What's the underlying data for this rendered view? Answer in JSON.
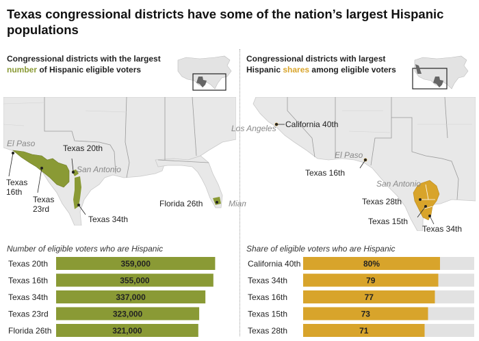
{
  "title": "Texas congressional districts have some of the nation’s largest Hispanic populations",
  "left_panel": {
    "subtitle_line1": "Congressional districts with the largest",
    "subtitle_highlight": "number",
    "subtitle_line2_rest": " of Hispanic eligible voters",
    "map_labels": {
      "el_paso": "El Paso",
      "san_antonio": "San Antonio",
      "miami": "Miami",
      "texas_20th": "Texas 20th",
      "texas_16th_a": "Texas",
      "texas_16th_b": "16th",
      "texas_23rd_a": "Texas",
      "texas_23rd_b": "23rd",
      "texas_34th": "Texas 34th",
      "florida_26th": "Florida 26th"
    },
    "chart_title": "Number of eligible voters who are Hispanic"
  },
  "right_panel": {
    "subtitle_line1": "Congressional districts with largest",
    "subtitle_prefix": "Hispanic ",
    "subtitle_highlight": "shares",
    "subtitle_rest": " among eligible voters",
    "map_labels": {
      "los_angeles": "Los Angeles",
      "california_40th": "California 40th",
      "el_paso": "El Paso",
      "texas_16th": "Texas 16th",
      "san_antonio": "San Antonio",
      "texas_28th": "Texas 28th",
      "texas_15th": "Texas 15th",
      "texas_34th": "Texas 34th"
    },
    "chart_title": "Share of eligible voters who are Hispanic"
  },
  "colors": {
    "green": "#8a9a35",
    "gold": "#d8a42b",
    "track": "#e2e2e2",
    "land": "#e8e8e8"
  },
  "chart_data": [
    {
      "type": "bar",
      "orientation": "horizontal",
      "title": "Number of eligible voters who are Hispanic",
      "categories": [
        "Texas 20th",
        "Texas 16th",
        "Texas 34th",
        "Texas 23rd",
        "Florida 26th"
      ],
      "values": [
        359000,
        355000,
        337000,
        323000,
        321000
      ],
      "value_labels": [
        "359,000",
        "355,000",
        "337,000",
        "323,000",
        "321,000"
      ],
      "xlim": [
        0,
        380000
      ],
      "color": "#8a9a35"
    },
    {
      "type": "bar",
      "orientation": "horizontal",
      "title": "Share of eligible voters who are Hispanic",
      "categories": [
        "California 40th",
        "Texas 34th",
        "Texas 16th",
        "Texas 15th",
        "Texas 28th"
      ],
      "values": [
        80,
        79,
        77,
        73,
        71
      ],
      "value_labels": [
        "80%",
        "79",
        "77",
        "73",
        "71"
      ],
      "xlim": [
        0,
        100
      ],
      "color": "#d8a42b"
    }
  ]
}
